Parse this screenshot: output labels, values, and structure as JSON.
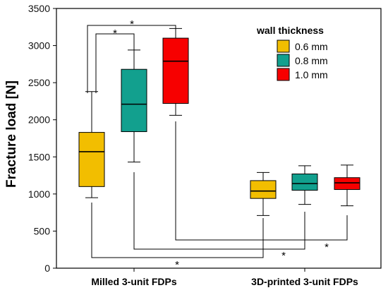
{
  "chart_data": {
    "type": "boxplot",
    "ylabel": "Fracture load [N]",
    "ylim": [
      0,
      3500
    ],
    "yticks": [
      "0",
      "500",
      "1000",
      "1500",
      "2000",
      "2500",
      "3000",
      "3500"
    ],
    "categories": [
      "Milled 3-unit FDPs",
      "3D-printed 3-unit FDPs"
    ],
    "legend": {
      "title": "wall thickness",
      "position": "top-right",
      "items": [
        "0.6 mm",
        "0.8 mm",
        "1.0 mm"
      ]
    },
    "colors": {
      "0.6 mm": "#F2BE00",
      "0.8 mm": "#12A08E",
      "1.0 mm": "#F70000"
    },
    "series": [
      {
        "name": "0.6 mm",
        "boxes": [
          {
            "category": "Milled 3-unit FDPs",
            "min": 950,
            "q1": 1100,
            "median": 1570,
            "q3": 1830,
            "max": 2380
          },
          {
            "category": "3D-printed 3-unit FDPs",
            "min": 710,
            "q1": 940,
            "median": 1040,
            "q3": 1180,
            "max": 1290
          }
        ]
      },
      {
        "name": "0.8 mm",
        "boxes": [
          {
            "category": "Milled 3-unit FDPs",
            "min": 1430,
            "q1": 1840,
            "median": 2210,
            "q3": 2680,
            "max": 2940
          },
          {
            "category": "3D-printed 3-unit FDPs",
            "min": 860,
            "q1": 1050,
            "median": 1140,
            "q3": 1270,
            "max": 1380
          }
        ]
      },
      {
        "name": "1.0 mm",
        "boxes": [
          {
            "category": "Milled 3-unit FDPs",
            "min": 2060,
            "q1": 2220,
            "median": 2790,
            "q3": 3100,
            "max": 3230
          },
          {
            "category": "3D-printed 3-unit FDPs",
            "min": 840,
            "q1": 1060,
            "median": 1150,
            "q3": 1220,
            "max": 1390
          }
        ]
      }
    ],
    "significance": [
      {
        "from": "Milled 3-unit FDPs · 0.6 mm",
        "to": "Milled 3-unit FDPs · 1.0 mm",
        "label": "*"
      },
      {
        "from": "Milled 3-unit FDPs · 0.6 mm",
        "to": "Milled 3-unit FDPs · 0.8 mm",
        "label": "*"
      },
      {
        "from": "Milled 3-unit FDPs · 1.0 mm",
        "to": "3D-printed 3-unit FDPs · 1.0 mm",
        "label": "*"
      },
      {
        "from": "Milled 3-unit FDPs · 0.8 mm",
        "to": "3D-printed 3-unit FDPs · 0.8 mm",
        "label": "*"
      },
      {
        "from": "Milled 3-unit FDPs · 0.6 mm",
        "to": "3D-printed 3-unit FDPs · 0.6 mm",
        "label": "*"
      }
    ]
  }
}
